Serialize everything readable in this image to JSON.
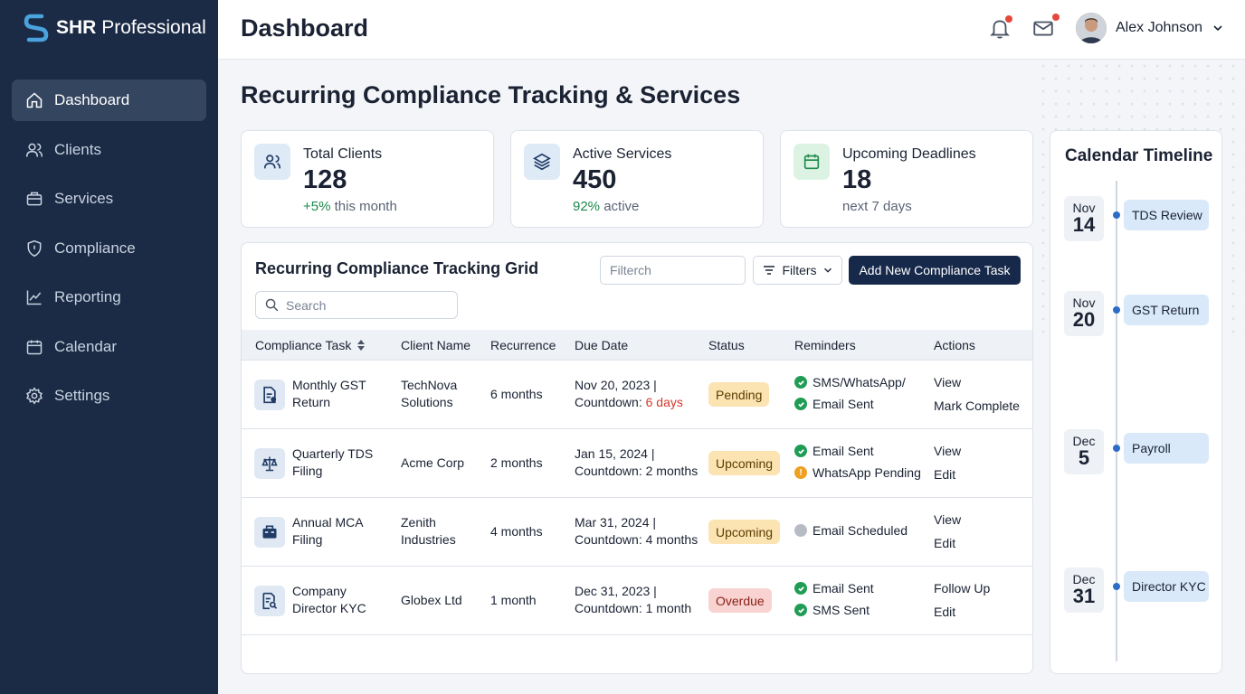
{
  "brand": {
    "name_bold": "SHR",
    "name_rest": "Professional"
  },
  "sidebar": {
    "items": [
      {
        "label": "Dashboard",
        "icon": "home-icon",
        "active": true
      },
      {
        "label": "Clients",
        "icon": "users-icon"
      },
      {
        "label": "Services",
        "icon": "briefcase-icon"
      },
      {
        "label": "Compliance",
        "icon": "shield-icon"
      },
      {
        "label": "Reporting",
        "icon": "chart-icon"
      },
      {
        "label": "Calendar",
        "icon": "calendar-icon"
      },
      {
        "label": "Settings",
        "icon": "gear-icon"
      }
    ]
  },
  "header": {
    "title": "Dashboard",
    "user_name": "Alex Johnson"
  },
  "main": {
    "section_title": "Recurring Compliance Tracking & Services"
  },
  "stats": [
    {
      "label": "Total Clients",
      "value": "128",
      "sub_highlight": "+5%",
      "sub_rest": " this month",
      "icon": "users-icon",
      "accent": "#dfeaf7"
    },
    {
      "label": "Active Services",
      "value": "450",
      "sub_highlight": "92%",
      "sub_rest": " active",
      "icon": "layers-icon",
      "accent": "#dfeaf7"
    },
    {
      "label": "Upcoming Deadlines",
      "value": "18",
      "sub_highlight": "",
      "sub_rest": "next 7 days",
      "icon": "calendar-icon",
      "accent": "#dcf3e4"
    }
  ],
  "grid": {
    "title": "Recurring Compliance Tracking Grid",
    "filter_placeholder": "Filterch",
    "filters_label": "Filters",
    "add_label": "Add New Compliance Task",
    "search_placeholder": "Search",
    "columns": {
      "task": "Compliance Task",
      "client": "Client Name",
      "recurrence": "Recurrence",
      "due": "Due Date",
      "status": "Status",
      "reminders": "Reminders",
      "actions": "Actions"
    },
    "rows": [
      {
        "task1": "Monthly GST",
        "task2": "Return",
        "client1": "TechNova",
        "client2": "Solutions",
        "recurrence": "6 months",
        "due": "Nov 20, 2023",
        "countdown_label": "Countdown: ",
        "countdown_value": "6 days",
        "status": "Pending",
        "status_kind": "pending",
        "rem1": "SMS/WhatsApp/",
        "rem1_kind": "ok",
        "rem2": "Email Sent",
        "rem2_kind": "ok",
        "act1": "View",
        "act2": "Mark Complete",
        "icon": "document-icon"
      },
      {
        "task1": "Quarterly TDS",
        "task2": "Filing",
        "client1": "Acme Corp",
        "client2": "",
        "recurrence": "2 months",
        "due": "Jan 15, 2024",
        "countdown_label": "Countdown: 2 months",
        "countdown_value": "",
        "status": "Upcoming",
        "status_kind": "upcoming",
        "rem1": "Email Sent",
        "rem1_kind": "ok",
        "rem2": "WhatsApp Pending",
        "rem2_kind": "warn",
        "act1": "View",
        "act2": "Edit",
        "icon": "scale-icon"
      },
      {
        "task1": "Annual MCA",
        "task2": "Filing",
        "client1": "Zenith",
        "client2": "Industries",
        "recurrence": "4 months",
        "due": "Mar 31, 2024",
        "countdown_label": "Countdown: 4 months",
        "countdown_value": "",
        "status": "Upcoming",
        "status_kind": "upcoming",
        "rem1": "Email Scheduled",
        "rem1_kind": "neutral",
        "rem2": "",
        "rem2_kind": "",
        "act1": "View",
        "act2": "Edit",
        "icon": "briefcase-icon"
      },
      {
        "task1": "Company",
        "task2": "Director KYC",
        "client1": "Globex Ltd",
        "client2": "",
        "recurrence": "1 month",
        "due": "Dec 31, 2023",
        "countdown_label": "Countdown: 1 month",
        "countdown_value": "",
        "status": "Overdue",
        "status_kind": "overdue",
        "rem1": "Email Sent",
        "rem1_kind": "ok",
        "rem2": "SMS Sent",
        "rem2_kind": "ok",
        "act1": "Follow Up",
        "act2": "Edit",
        "icon": "id-search-icon"
      }
    ]
  },
  "calendar": {
    "title": "Calendar Timeline",
    "events": [
      {
        "month": "Nov",
        "day": "14",
        "label": "TDS Review"
      },
      {
        "month": "Nov",
        "day": "20",
        "label": "GST Return"
      },
      {
        "month": "Dec",
        "day": "5",
        "label": "Payroll"
      },
      {
        "month": "Dec",
        "day": "31",
        "label": "Director KYC"
      }
    ]
  },
  "colors": {
    "sidebar": "#1b2b45",
    "primary_button": "#17294a",
    "ok": "#1f9d55",
    "warn": "#f0a020",
    "overdue": "#d2392c"
  }
}
